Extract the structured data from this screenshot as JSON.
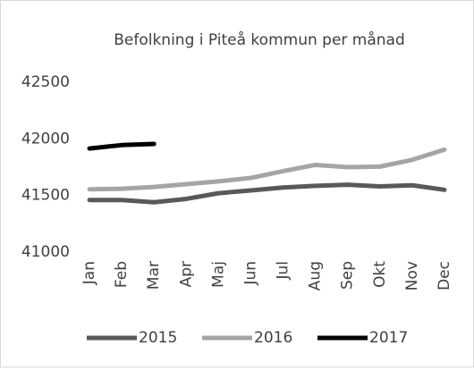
{
  "chart_data": {
    "type": "line",
    "title": "Befolkning i Piteå kommun per månad",
    "categories": [
      "Jan",
      "Feb",
      "Mar",
      "Apr",
      "Maj",
      "Jun",
      "Jul",
      "Aug",
      "Sep",
      "Okt",
      "Nov",
      "Dec"
    ],
    "series": [
      {
        "name": "2015",
        "color": "#595959",
        "values": [
          41460,
          41460,
          41440,
          41470,
          41520,
          41545,
          41570,
          41585,
          41595,
          41580,
          41590,
          41550
        ]
      },
      {
        "name": "2016",
        "color": "#a5a5a5",
        "values": [
          41555,
          41560,
          41575,
          41600,
          41625,
          41655,
          41715,
          41770,
          41750,
          41755,
          41815,
          41905
        ]
      },
      {
        "name": "2017",
        "color": "#000000",
        "values": [
          41915,
          41945,
          41955,
          null,
          null,
          null,
          null,
          null,
          null,
          null,
          null,
          null
        ]
      }
    ],
    "ylim": [
      41000,
      42500
    ],
    "yticks": [
      41000,
      41500,
      42000,
      42500
    ],
    "grid": false,
    "legend": "bottom"
  }
}
